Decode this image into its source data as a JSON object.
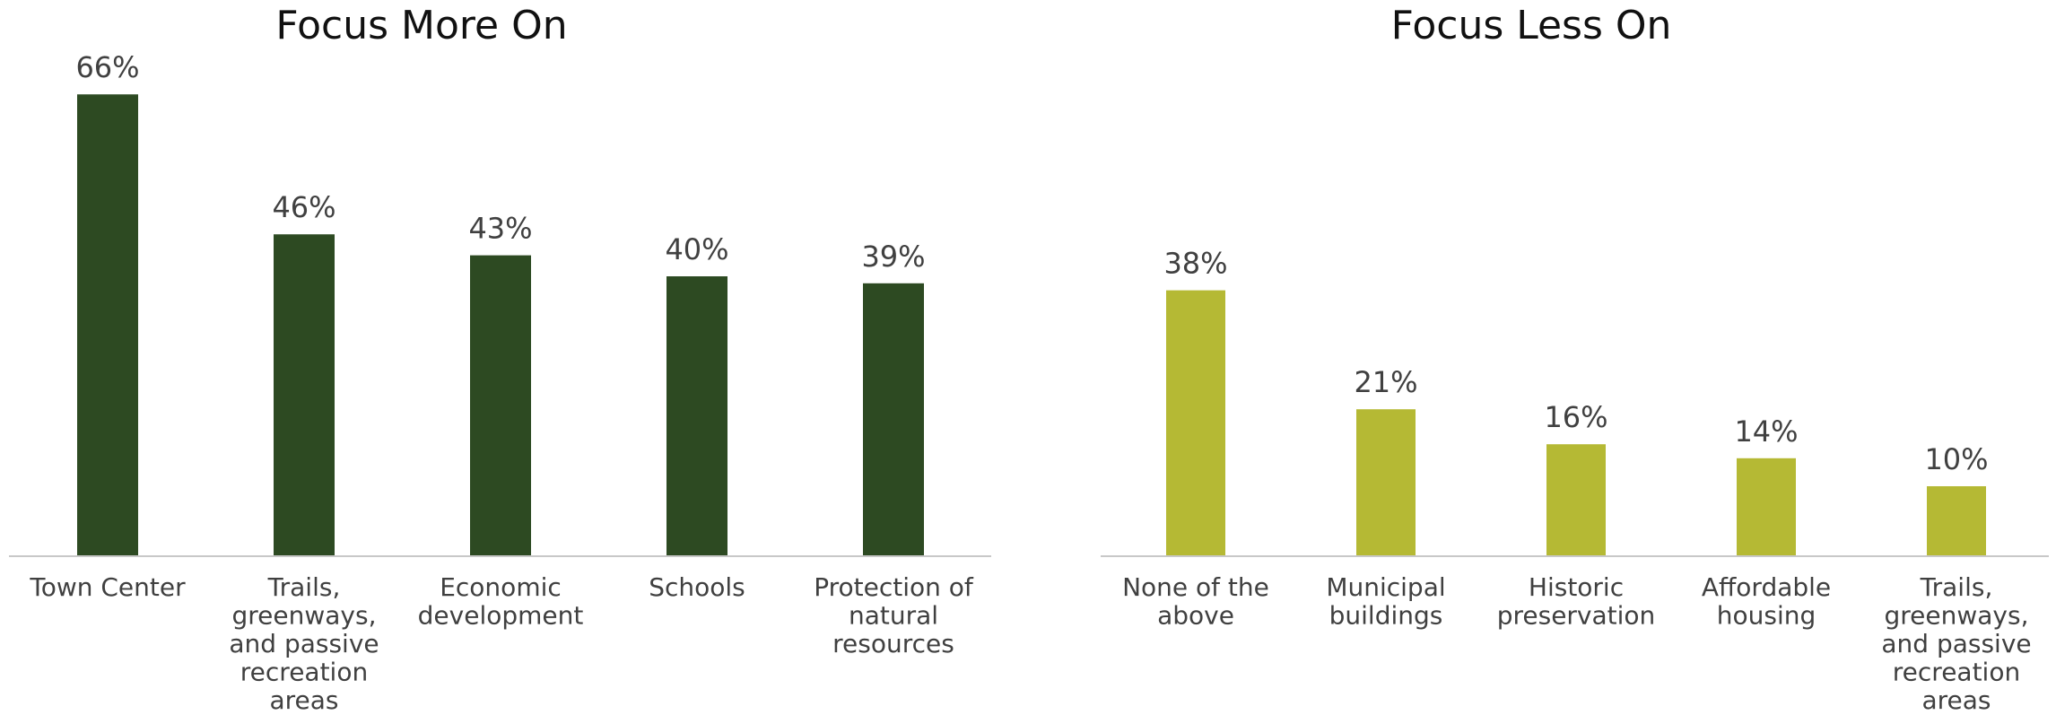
{
  "chart_data": [
    {
      "type": "bar",
      "title": "Focus More On",
      "categories": [
        "Town Center",
        "Trails, greenways, and passive recreation areas",
        "Economic development",
        "Schools",
        "Protection of natural resources"
      ],
      "category_lines": [
        [
          "Town Center"
        ],
        [
          "Trails,",
          "greenways,",
          "and passive",
          "recreation",
          "areas"
        ],
        [
          "Economic",
          "development"
        ],
        [
          "Schools"
        ],
        [
          "Protection of",
          "natural",
          "resources"
        ]
      ],
      "values": [
        66,
        46,
        43,
        40,
        39
      ],
      "value_labels": [
        "66%",
        "46%",
        "43%",
        "40%",
        "39%"
      ],
      "unit": "%",
      "ylim": [
        0,
        70
      ],
      "grid": false,
      "legend": "none",
      "color": "#2d4a22"
    },
    {
      "type": "bar",
      "title": "Focus Less On",
      "categories": [
        "None of the above",
        "Municipal buildings",
        "Historic preservation",
        "Affordable housing",
        "Trails, greenways, and passive recreation areas"
      ],
      "category_lines": [
        [
          "None of the",
          "above"
        ],
        [
          "Municipal",
          "buildings"
        ],
        [
          "Historic",
          "preservation"
        ],
        [
          "Affordable",
          "housing"
        ],
        [
          "Trails,",
          "greenways,",
          "and passive",
          "recreation",
          "areas"
        ]
      ],
      "values": [
        38,
        21,
        16,
        14,
        10
      ],
      "value_labels": [
        "38%",
        "21%",
        "16%",
        "14%",
        "10%"
      ],
      "unit": "%",
      "ylim": [
        0,
        70
      ],
      "grid": false,
      "legend": "none",
      "color": "#b5b934"
    }
  ]
}
